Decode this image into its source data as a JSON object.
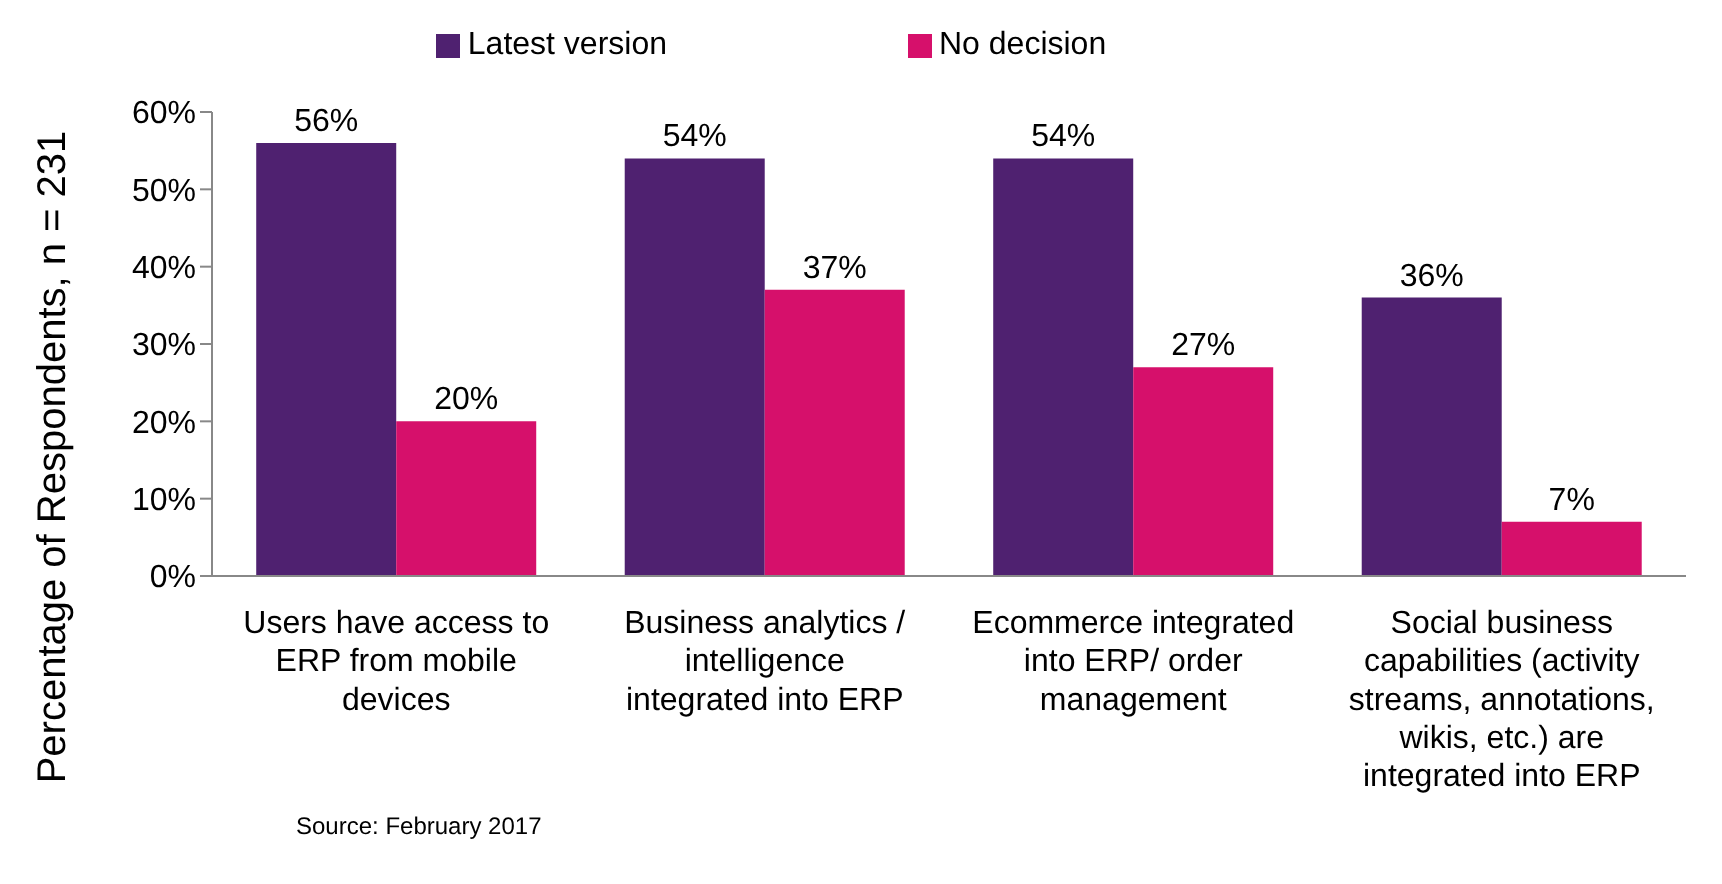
{
  "chart_data": {
    "type": "bar",
    "ylabel": "Percentage of Respondents, n = 231",
    "categories": [
      "Users have access to ERP from mobile devices",
      "Business analytics / intelligence integrated into ERP",
      "Ecommerce integrated into ERP/ order management",
      "Social business capabilities (activity streams, annotations, wikis, etc.) are integrated into ERP"
    ],
    "series": [
      {
        "name": "Latest version",
        "color": "#4f2170",
        "values": [
          56,
          54,
          54,
          36
        ],
        "value_labels": [
          "56%",
          "54%",
          "54%",
          "36%"
        ]
      },
      {
        "name": "No decision",
        "color": "#d6106b",
        "values": [
          20,
          37,
          27,
          7
        ],
        "value_labels": [
          "20%",
          "37%",
          "27%",
          "7%"
        ]
      }
    ],
    "ylim": [
      0,
      60
    ],
    "yticks": [
      {
        "value": 0,
        "label": "0%"
      },
      {
        "value": 10,
        "label": "10%"
      },
      {
        "value": 20,
        "label": "20%"
      },
      {
        "value": 30,
        "label": "30%"
      },
      {
        "value": 40,
        "label": "40%"
      },
      {
        "value": 50,
        "label": "50%"
      },
      {
        "value": 60,
        "label": "60%"
      }
    ],
    "grid": false,
    "legend": "top",
    "annotations": [
      "Source: February 2017"
    ]
  }
}
